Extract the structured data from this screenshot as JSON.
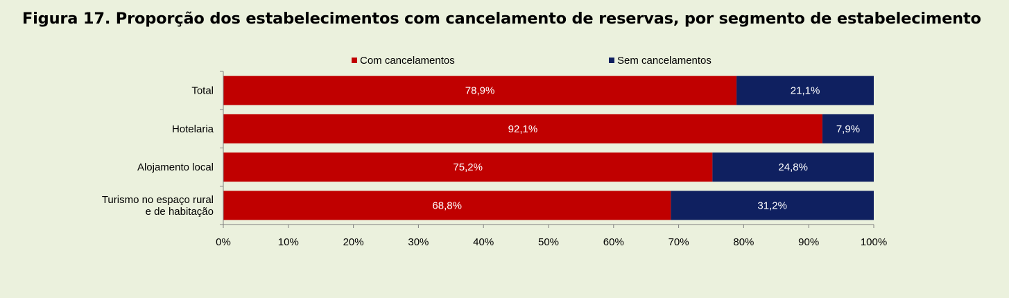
{
  "colors": {
    "background": "#ebf1dd",
    "com": "#c00000",
    "sem": "#0f2060",
    "axis": "#808080"
  },
  "chart_data": {
    "type": "bar",
    "orientation": "horizontal",
    "stacked": true,
    "title": "Figura 17. Proporção dos estabelecimentos com cancelamento de reservas, por segmento de estabelecimento",
    "categories": [
      [
        "Total"
      ],
      [
        "Hotelaria"
      ],
      [
        "Alojamento local"
      ],
      [
        "Turismo no espaço rural",
        "e de habitação"
      ]
    ],
    "series": [
      {
        "name": "Com cancelamentos",
        "values": [
          78.9,
          92.1,
          75.2,
          68.8
        ],
        "labels": [
          "78,9%",
          "92,1%",
          "75,2%",
          "68,8%"
        ]
      },
      {
        "name": "Sem cancelamentos",
        "values": [
          21.1,
          7.9,
          24.8,
          31.2
        ],
        "labels": [
          "21,1%",
          "7,9%",
          "24,8%",
          "31,2%"
        ]
      }
    ],
    "xlim": [
      0,
      100
    ],
    "xticks": [
      "0%",
      "10%",
      "20%",
      "30%",
      "40%",
      "50%",
      "60%",
      "70%",
      "80%",
      "90%",
      "100%"
    ],
    "legend": "top-center",
    "grid": false
  }
}
